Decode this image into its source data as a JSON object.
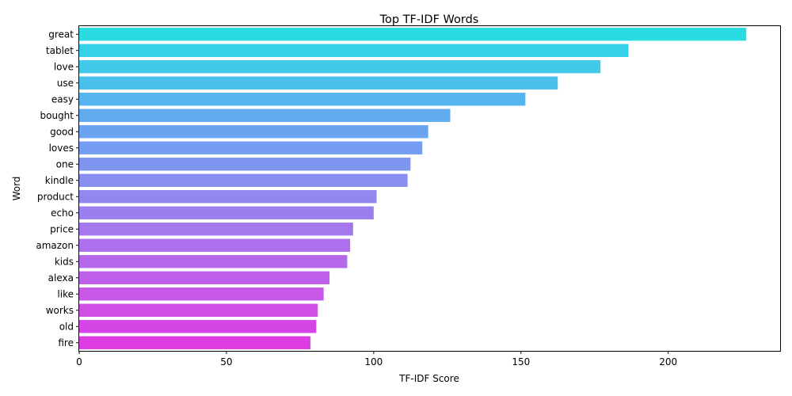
{
  "chart_data": {
    "type": "bar",
    "orientation": "horizontal",
    "title": "Top TF-IDF Words",
    "xlabel": "TF-IDF Score",
    "ylabel": "Word",
    "xlim": [
      0,
      238
    ],
    "xticks": [
      0,
      50,
      100,
      150,
      200
    ],
    "grid": false,
    "categories": [
      "great",
      "tablet",
      "love",
      "use",
      "easy",
      "bought",
      "good",
      "loves",
      "one",
      "kindle",
      "product",
      "echo",
      "price",
      "amazon",
      "kids",
      "alexa",
      "like",
      "works",
      "old",
      "fire"
    ],
    "values": [
      226.5,
      186.5,
      177,
      162.5,
      151.5,
      126,
      118.5,
      116.5,
      112.5,
      111.5,
      101,
      100,
      93,
      92,
      91,
      85,
      83,
      81,
      80.5,
      78.5
    ],
    "colors": [
      "#2adce2",
      "#35d1e6",
      "#40c9e9",
      "#4bbfec",
      "#55b5ee",
      "#60acef",
      "#6aa3f0",
      "#749cf0",
      "#7e95f0",
      "#888df0",
      "#9286ef",
      "#9b7fee",
      "#a477ed",
      "#ad6fec",
      "#b568ea",
      "#bd5fe8",
      "#c657e7",
      "#ce4ee6",
      "#d545e5",
      "#dd3ce3"
    ]
  }
}
